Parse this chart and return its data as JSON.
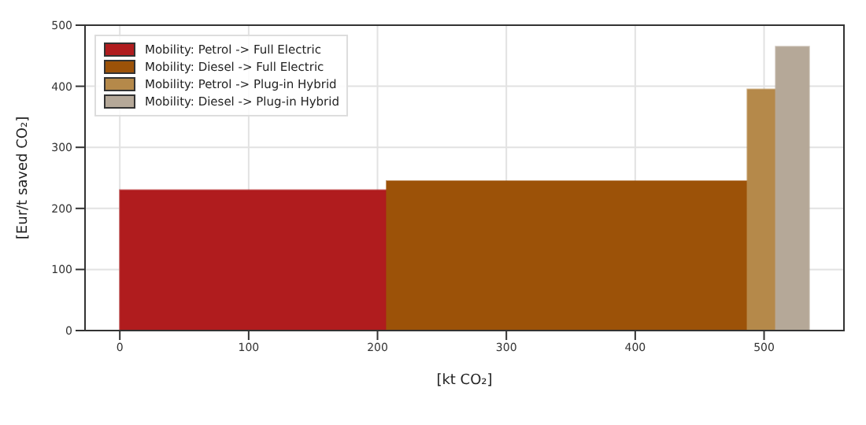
{
  "chart_data": {
    "type": "histogram",
    "xlabel": "[kt CO₂]",
    "ylabel": "[Eur/t saved CO₂]",
    "bins": [
      0,
      207,
      487,
      509,
      535
    ],
    "series": [
      {
        "name": "Mobility: Petrol -> Full Electric",
        "color": "#b01c1e",
        "values": [
          230,
          null,
          null,
          null
        ]
      },
      {
        "name": "Mobility: Diesel -> Full Electric",
        "color": "#9c5208",
        "values": [
          null,
          245,
          null,
          null
        ]
      },
      {
        "name": "Mobility: Petrol -> Plug-in Hybrid",
        "color": "#b5894a",
        "values": [
          null,
          null,
          395,
          null
        ]
      },
      {
        "name": "Mobility: Diesel -> Plug-in Hybrid",
        "color": "#b5a898",
        "values": [
          null,
          null,
          null,
          465
        ]
      }
    ],
    "xlim": [
      -27,
      562
    ],
    "xticks": [
      0,
      100,
      200,
      300,
      400,
      500
    ],
    "ylim": [
      0,
      500
    ],
    "yticks": [
      0,
      100,
      200,
      300,
      400,
      500
    ],
    "grid": true,
    "legend": "top left"
  }
}
